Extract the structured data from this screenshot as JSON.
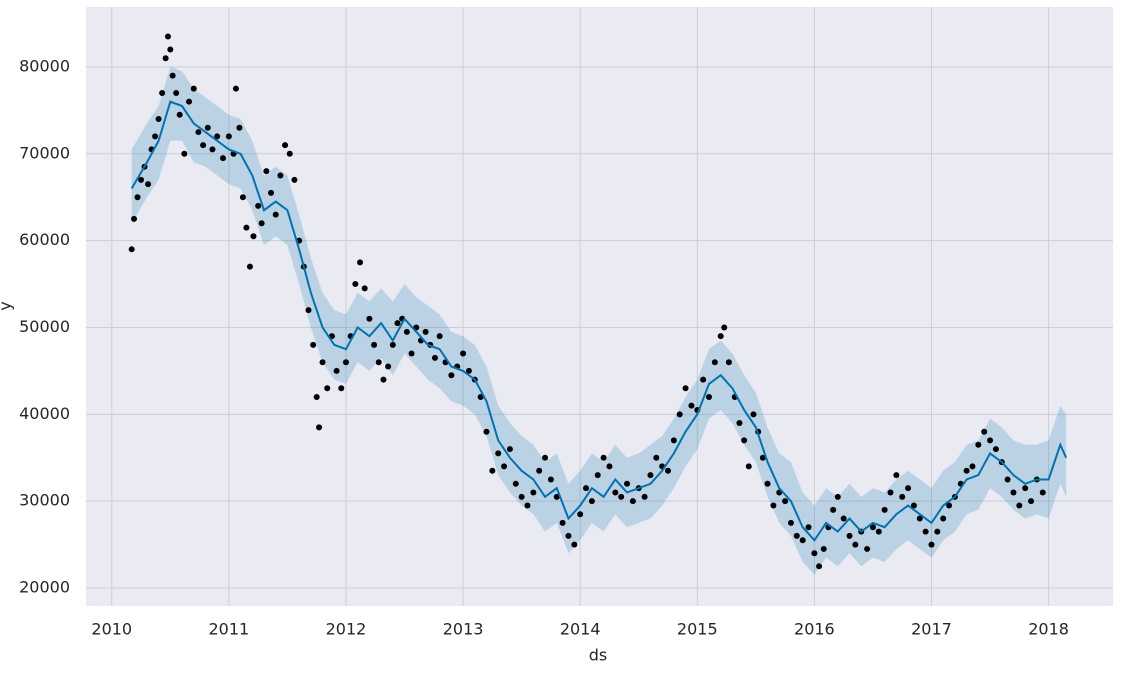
{
  "chart_data": {
    "type": "line",
    "xlabel": "ds",
    "ylabel": "y",
    "xlim": [
      2009.78,
      2018.55
    ],
    "ylim": [
      17930,
      86900
    ],
    "xticks": [
      2010,
      2011,
      2012,
      2013,
      2014,
      2015,
      2016,
      2017,
      2018
    ],
    "yticks": [
      20000,
      30000,
      40000,
      50000,
      60000,
      70000,
      80000
    ],
    "grid": true,
    "background": "#eaeaf2",
    "x": [
      2010.17,
      2010.3,
      2010.4,
      2010.5,
      2010.6,
      2010.7,
      2010.8,
      2010.9,
      2011.0,
      2011.1,
      2011.2,
      2011.3,
      2011.4,
      2011.5,
      2011.6,
      2011.7,
      2011.8,
      2011.9,
      2012.0,
      2012.1,
      2012.2,
      2012.3,
      2012.4,
      2012.5,
      2012.6,
      2012.7,
      2012.8,
      2012.9,
      2013.0,
      2013.1,
      2013.2,
      2013.3,
      2013.4,
      2013.5,
      2013.6,
      2013.7,
      2013.8,
      2013.9,
      2014.0,
      2014.1,
      2014.2,
      2014.3,
      2014.4,
      2014.5,
      2014.6,
      2014.7,
      2014.8,
      2014.9,
      2015.0,
      2015.1,
      2015.2,
      2015.3,
      2015.4,
      2015.5,
      2015.6,
      2015.7,
      2015.8,
      2015.9,
      2016.0,
      2016.1,
      2016.2,
      2016.3,
      2016.4,
      2016.5,
      2016.6,
      2016.7,
      2016.8,
      2016.9,
      2017.0,
      2017.1,
      2017.2,
      2017.3,
      2017.4,
      2017.5,
      2017.6,
      2017.7,
      2017.8,
      2017.9,
      2018.0,
      2018.1,
      2018.15
    ],
    "series": [
      {
        "color": "#0072b2",
        "values": [
          66000,
          69000,
          71500,
          76000,
          75500,
          73500,
          72500,
          71500,
          70500,
          70000,
          67500,
          63500,
          64500,
          63500,
          59000,
          54000,
          50000,
          48000,
          47500,
          50000,
          49000,
          50500,
          48500,
          51000,
          49500,
          48000,
          47500,
          45500,
          45000,
          44000,
          41500,
          37000,
          35000,
          33500,
          32500,
          30500,
          31500,
          28000,
          29500,
          31500,
          30500,
          32500,
          31000,
          31500,
          32000,
          33500,
          35500,
          38000,
          40000,
          43500,
          44500,
          43000,
          40500,
          38500,
          34500,
          31500,
          30000,
          27000,
          25500,
          27500,
          26500,
          28000,
          26500,
          27500,
          27000,
          28500,
          29500,
          28500,
          27500,
          29500,
          30500,
          32500,
          33000,
          35500,
          34500,
          33000,
          32000,
          32500,
          32500,
          36500,
          35000
        ]
      }
    ],
    "band": {
      "color": "#0072b2",
      "lower": [
        62000,
        65000,
        67000,
        71500,
        71500,
        69000,
        68500,
        67500,
        66500,
        66000,
        63500,
        59500,
        60500,
        59500,
        55000,
        50000,
        46000,
        44000,
        43500,
        46000,
        45000,
        46500,
        44500,
        47000,
        45500,
        44000,
        43000,
        41500,
        41000,
        40000,
        37500,
        33000,
        31000,
        29500,
        28500,
        26500,
        27500,
        24000,
        25500,
        27500,
        26500,
        28500,
        27000,
        27500,
        28000,
        29500,
        31500,
        34000,
        36000,
        39500,
        40500,
        39000,
        36500,
        34500,
        30500,
        27500,
        26000,
        23000,
        21500,
        23500,
        22500,
        24000,
        22500,
        23500,
        23000,
        24500,
        25500,
        24500,
        23500,
        25500,
        26500,
        28500,
        29000,
        31500,
        30500,
        29000,
        28000,
        28500,
        28000,
        32000,
        30500
      ],
      "upper": [
        70500,
        73500,
        75500,
        80000,
        79500,
        77500,
        76500,
        75500,
        74500,
        74000,
        71500,
        67500,
        68500,
        67500,
        63000,
        58000,
        54000,
        52000,
        51500,
        54000,
        53000,
        54500,
        53000,
        55000,
        53500,
        52500,
        51500,
        49500,
        49000,
        48000,
        45500,
        41000,
        39000,
        37500,
        36500,
        34500,
        35500,
        32000,
        33500,
        35500,
        34500,
        36500,
        35000,
        35500,
        36500,
        37500,
        39500,
        42000,
        44000,
        47500,
        48500,
        47000,
        44500,
        42500,
        38500,
        35500,
        34500,
        31000,
        29500,
        31500,
        30500,
        32000,
        30500,
        31500,
        31000,
        32500,
        33500,
        32500,
        31500,
        33500,
        34500,
        36500,
        37000,
        39500,
        38500,
        37000,
        36500,
        36500,
        37000,
        41000,
        40000
      ]
    },
    "points": {
      "color": "#000000",
      "x": [
        2010.17,
        2010.19,
        2010.22,
        2010.25,
        2010.28,
        2010.31,
        2010.34,
        2010.37,
        2010.4,
        2010.43,
        2010.46,
        2010.48,
        2010.5,
        2010.52,
        2010.55,
        2010.58,
        2010.62,
        2010.66,
        2010.7,
        2010.74,
        2010.78,
        2010.82,
        2010.86,
        2010.9,
        2010.95,
        2011.0,
        2011.04,
        2011.06,
        2011.09,
        2011.12,
        2011.15,
        2011.18,
        2011.21,
        2011.25,
        2011.28,
        2011.32,
        2011.36,
        2011.4,
        2011.44,
        2011.48,
        2011.52,
        2011.56,
        2011.6,
        2011.64,
        2011.68,
        2011.72,
        2011.75,
        2011.77,
        2011.8,
        2011.84,
        2011.88,
        2011.92,
        2011.96,
        2012.0,
        2012.04,
        2012.08,
        2012.12,
        2012.16,
        2012.2,
        2012.24,
        2012.28,
        2012.32,
        2012.36,
        2012.4,
        2012.44,
        2012.48,
        2012.52,
        2012.56,
        2012.6,
        2012.64,
        2012.68,
        2012.72,
        2012.76,
        2012.8,
        2012.85,
        2012.9,
        2012.95,
        2013.0,
        2013.05,
        2013.1,
        2013.15,
        2013.2,
        2013.25,
        2013.3,
        2013.35,
        2013.4,
        2013.45,
        2013.5,
        2013.55,
        2013.6,
        2013.65,
        2013.7,
        2013.75,
        2013.8,
        2013.85,
        2013.9,
        2013.95,
        2014.0,
        2014.05,
        2014.1,
        2014.15,
        2014.2,
        2014.25,
        2014.3,
        2014.35,
        2014.4,
        2014.45,
        2014.5,
        2014.55,
        2014.6,
        2014.65,
        2014.7,
        2014.75,
        2014.8,
        2014.85,
        2014.9,
        2014.95,
        2015.0,
        2015.05,
        2015.1,
        2015.15,
        2015.2,
        2015.23,
        2015.27,
        2015.32,
        2015.36,
        2015.4,
        2015.44,
        2015.48,
        2015.52,
        2015.56,
        2015.6,
        2015.65,
        2015.7,
        2015.75,
        2015.8,
        2015.85,
        2015.9,
        2015.95,
        2016.0,
        2016.04,
        2016.08,
        2016.12,
        2016.16,
        2016.2,
        2016.25,
        2016.3,
        2016.35,
        2016.4,
        2016.45,
        2016.5,
        2016.55,
        2016.6,
        2016.65,
        2016.7,
        2016.75,
        2016.8,
        2016.85,
        2016.9,
        2016.95,
        2017.0,
        2017.05,
        2017.1,
        2017.15,
        2017.2,
        2017.25,
        2017.3,
        2017.35,
        2017.4,
        2017.45,
        2017.5,
        2017.55,
        2017.6,
        2017.65,
        2017.7,
        2017.75,
        2017.8,
        2017.85,
        2017.9,
        2017.95
      ],
      "values": [
        59000,
        62500,
        65000,
        67000,
        68500,
        66500,
        70500,
        72000,
        74000,
        77000,
        81000,
        83500,
        82000,
        79000,
        77000,
        74500,
        70000,
        76000,
        77500,
        72500,
        71000,
        73000,
        70500,
        72000,
        69500,
        72000,
        70000,
        77500,
        73000,
        65000,
        61500,
        57000,
        60500,
        64000,
        62000,
        68000,
        65500,
        63000,
        67500,
        71000,
        70000,
        67000,
        60000,
        57000,
        52000,
        48000,
        42000,
        38500,
        46000,
        43000,
        49000,
        45000,
        43000,
        46000,
        49000,
        55000,
        57500,
        54500,
        51000,
        48000,
        46000,
        44000,
        45500,
        48000,
        50500,
        51000,
        49500,
        47000,
        50000,
        48500,
        49500,
        48000,
        46500,
        49000,
        46000,
        44500,
        45500,
        47000,
        45000,
        44000,
        42000,
        38000,
        33500,
        35500,
        34000,
        36000,
        32000,
        30500,
        29500,
        31000,
        33500,
        35000,
        32500,
        30500,
        27500,
        26000,
        25000,
        28500,
        31500,
        30000,
        33000,
        35000,
        34000,
        31000,
        30500,
        32000,
        30000,
        31500,
        30500,
        33000,
        35000,
        34000,
        33500,
        37000,
        40000,
        43000,
        41000,
        40500,
        44000,
        42000,
        46000,
        49000,
        50000,
        46000,
        42000,
        39000,
        37000,
        34000,
        40000,
        38000,
        35000,
        32000,
        29500,
        31000,
        30000,
        27500,
        26000,
        25500,
        27000,
        24000,
        22500,
        24500,
        27000,
        29000,
        30500,
        28000,
        26000,
        25000,
        26500,
        24500,
        27000,
        26500,
        29000,
        31000,
        33000,
        30500,
        31500,
        29500,
        28000,
        26500,
        25000,
        26500,
        28000,
        29500,
        30500,
        32000,
        33500,
        34000,
        36500,
        38000,
        37000,
        36000,
        34500,
        32500,
        31000,
        29500,
        31500,
        30000,
        32500,
        31000
      ]
    }
  }
}
